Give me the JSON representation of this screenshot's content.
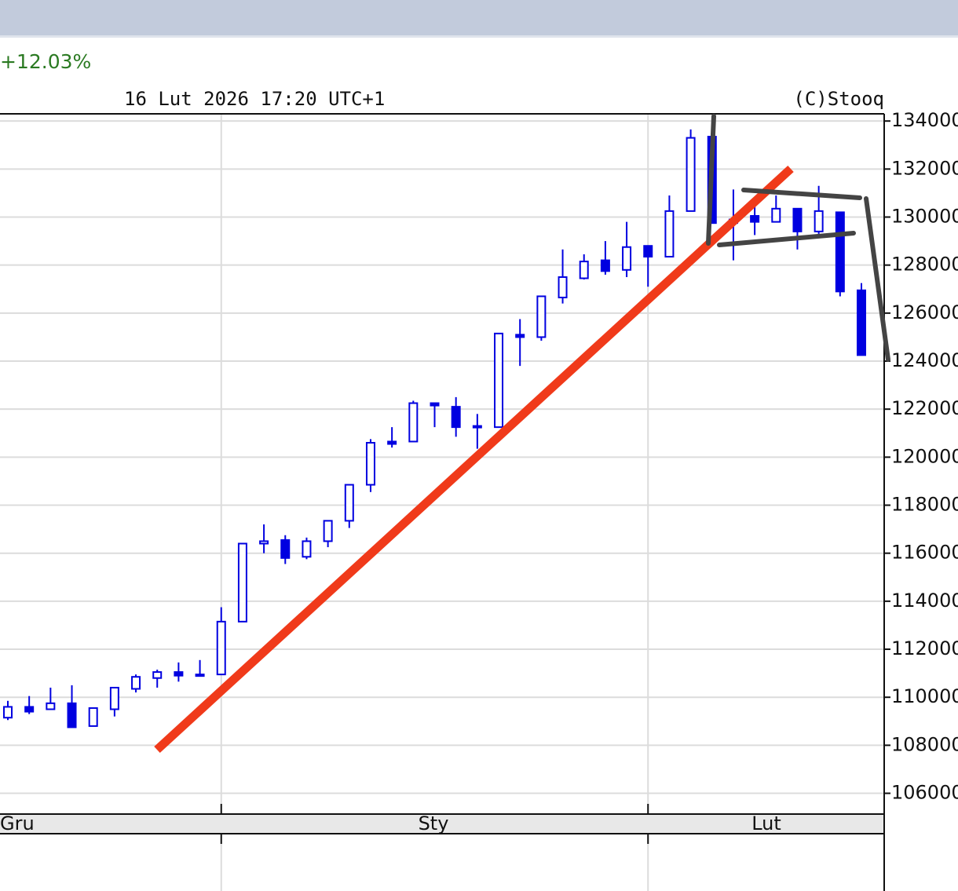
{
  "chart_data": {
    "type": "candlestick",
    "change": "+12.03%",
    "timestamp": "16 Lut 2026 17:20 UTC+1",
    "source": "(C)Stooq",
    "months": [
      "Gru",
      "Sty",
      "Lut"
    ],
    "color": "#0000e0",
    "open": [
      109150,
      109600,
      109500,
      109750,
      108800,
      109500,
      110350,
      110800,
      111050,
      110950,
      110950,
      113150,
      116400,
      116550,
      115850,
      116500,
      117350,
      118850,
      120650,
      120650,
      122250,
      122100,
      121300,
      121250,
      125100,
      125000,
      126650,
      127450,
      128200,
      127800,
      128800,
      128350,
      130250,
      133350,
      129900,
      130050,
      129800,
      130350,
      129400,
      130200,
      126950
    ],
    "close": [
      109600,
      109400,
      109750,
      108750,
      109550,
      110400,
      110850,
      111050,
      110900,
      110900,
      113150,
      116400,
      116500,
      115800,
      116500,
      117350,
      118850,
      120600,
      120550,
      122250,
      122150,
      121250,
      121250,
      125150,
      125000,
      126700,
      127500,
      128150,
      127750,
      128750,
      128350,
      130250,
      133300,
      129750,
      129750,
      129800,
      130350,
      129400,
      130250,
      126900,
      124250
    ],
    "high": [
      109850,
      110050,
      110400,
      110500,
      109550,
      110400,
      110950,
      111150,
      111450,
      111550,
      113750,
      116400,
      117200,
      116750,
      116650,
      117350,
      118850,
      120750,
      121250,
      122350,
      122250,
      122500,
      121800,
      125150,
      125750,
      126700,
      128650,
      128450,
      129000,
      129800,
      128800,
      130900,
      133650,
      133350,
      131150,
      130550,
      130900,
      130350,
      131300,
      130200,
      127250
    ],
    "low": [
      109050,
      109300,
      109500,
      108750,
      108800,
      109200,
      110200,
      110400,
      110650,
      110900,
      110950,
      113150,
      116000,
      115550,
      115750,
      116250,
      117050,
      118550,
      120400,
      120650,
      121250,
      120850,
      120350,
      121250,
      123800,
      124850,
      126400,
      127400,
      127600,
      127500,
      127100,
      128350,
      130250,
      129750,
      128200,
      129250,
      129800,
      128650,
      129300,
      126700,
      124250
    ],
    "ylim": [
      105200,
      134300
    ],
    "yticks": [
      106000,
      108000,
      110000,
      112000,
      114000,
      116000,
      118000,
      120000,
      122000,
      124000,
      126000,
      128000,
      130000,
      132000,
      134000
    ],
    "grid": true
  }
}
